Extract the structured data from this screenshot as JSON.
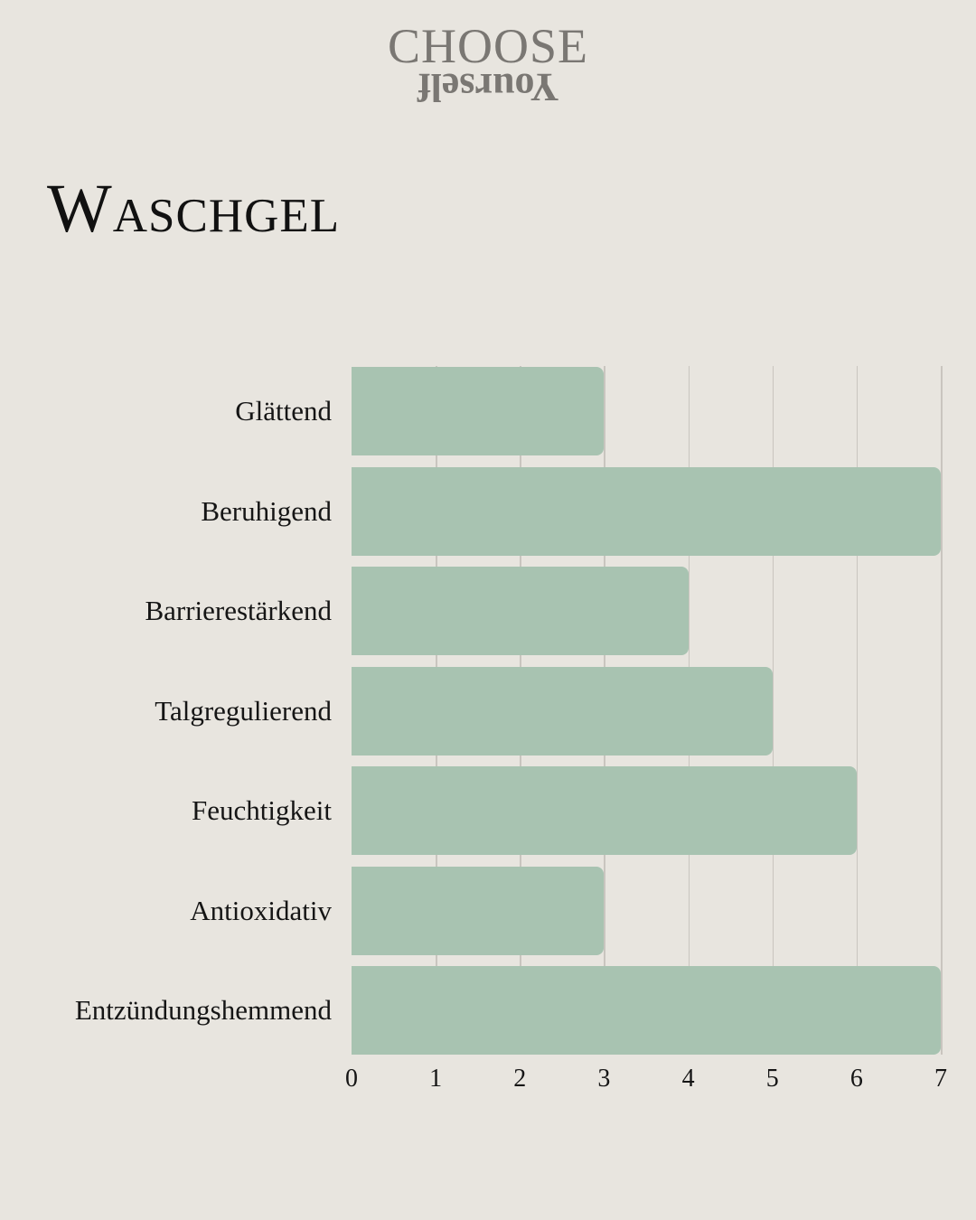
{
  "logo": {
    "top": "CHOOSE",
    "bottom_inverted": "Yourself"
  },
  "title": "Waschgel",
  "colors": {
    "background": "#e8e5df",
    "bar": "#a8c3b1",
    "gridline": "#c9c5bf",
    "text": "#151515",
    "logo": "#7a7773"
  },
  "chart_data": {
    "type": "bar",
    "orientation": "horizontal",
    "title": "Waschgel",
    "xlabel": "",
    "ylabel": "",
    "categories": [
      "Glättend",
      "Beruhigend",
      "Barrierestärkend",
      "Talgregulierend",
      "Feuchtigkeit",
      "Antioxidativ",
      "Entzündungshemmend"
    ],
    "values": [
      3,
      7,
      4,
      5,
      6,
      3,
      7
    ],
    "xlim": [
      0,
      7
    ],
    "xticks": [
      "0",
      "1",
      "2",
      "3",
      "4",
      "5",
      "6",
      "7"
    ],
    "grid": true,
    "legend": null
  }
}
